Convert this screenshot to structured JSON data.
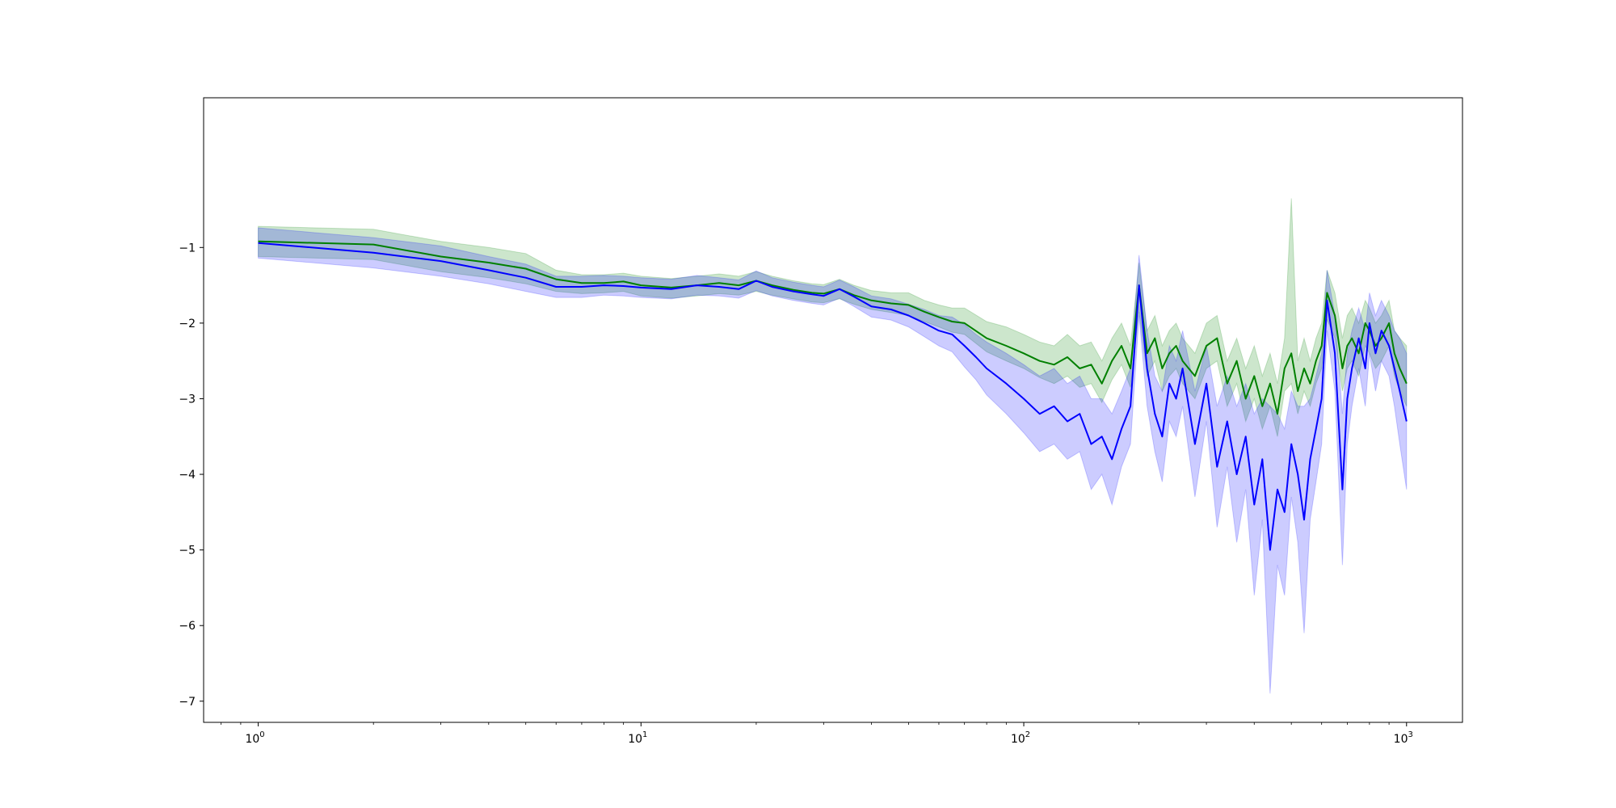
{
  "chart_data": {
    "type": "line",
    "title": "",
    "xlabel": "",
    "ylabel": "",
    "xscale": "log",
    "xlim": [
      0.72,
      1400
    ],
    "ylim": [
      -7.28,
      0.98
    ],
    "grid": false,
    "legend": "none",
    "x_ticks": [
      {
        "value": 1,
        "base": "10",
        "exp": "0"
      },
      {
        "value": 10,
        "base": "10",
        "exp": "1"
      },
      {
        "value": 100,
        "base": "10",
        "exp": "2"
      },
      {
        "value": 1000,
        "base": "10",
        "exp": "3"
      }
    ],
    "y_ticks": [
      {
        "value": -1,
        "label": "−1"
      },
      {
        "value": -2,
        "label": "−2"
      },
      {
        "value": -3,
        "label": "−3"
      },
      {
        "value": -4,
        "label": "−4"
      },
      {
        "value": -5,
        "label": "−5"
      },
      {
        "value": -6,
        "label": "−6"
      },
      {
        "value": -7,
        "label": "−7"
      }
    ],
    "series": [
      {
        "color": "#008000",
        "band_color": "#008000",
        "band_opacity": 0.2,
        "x": [
          1,
          2,
          3,
          4,
          5,
          6,
          7,
          8,
          9,
          10,
          12,
          14,
          16,
          18,
          20,
          22,
          25,
          28,
          30,
          33,
          36,
          40,
          45,
          50,
          55,
          60,
          65,
          70,
          80,
          90,
          100,
          110,
          120,
          130,
          140,
          150,
          160,
          170,
          180,
          190,
          200,
          210,
          220,
          230,
          240,
          250,
          260,
          280,
          300,
          320,
          340,
          360,
          380,
          400,
          420,
          440,
          460,
          480,
          500,
          520,
          540,
          560,
          580,
          600,
          620,
          650,
          680,
          700,
          720,
          750,
          780,
          800,
          830,
          860,
          900,
          930,
          960,
          1000
        ],
        "y": [
          -0.92,
          -0.96,
          -1.12,
          -1.2,
          -1.28,
          -1.42,
          -1.47,
          -1.47,
          -1.45,
          -1.5,
          -1.53,
          -1.5,
          -1.47,
          -1.5,
          -1.44,
          -1.5,
          -1.56,
          -1.6,
          -1.61,
          -1.55,
          -1.63,
          -1.7,
          -1.74,
          -1.76,
          -1.85,
          -1.92,
          -1.98,
          -2.0,
          -2.2,
          -2.3,
          -2.4,
          -2.5,
          -2.55,
          -2.45,
          -2.6,
          -2.55,
          -2.8,
          -2.5,
          -2.3,
          -2.6,
          -1.5,
          -2.4,
          -2.2,
          -2.6,
          -2.4,
          -2.3,
          -2.5,
          -2.7,
          -2.3,
          -2.2,
          -2.8,
          -2.5,
          -3.0,
          -2.7,
          -3.1,
          -2.8,
          -3.2,
          -2.6,
          -2.4,
          -2.9,
          -2.6,
          -2.8,
          -2.5,
          -2.3,
          -1.6,
          -1.9,
          -2.6,
          -2.3,
          -2.2,
          -2.4,
          -2.0,
          -2.1,
          -2.3,
          -2.2,
          -2.0,
          -2.4,
          -2.6,
          -2.8
        ],
        "y_lower": [
          -1.12,
          -1.16,
          -1.32,
          -1.4,
          -1.48,
          -1.58,
          -1.61,
          -1.6,
          -1.58,
          -1.64,
          -1.67,
          -1.64,
          -1.61,
          -1.63,
          -1.58,
          -1.63,
          -1.68,
          -1.72,
          -1.73,
          -1.68,
          -1.75,
          -1.82,
          -1.86,
          -1.9,
          -1.98,
          -2.05,
          -2.12,
          -2.15,
          -2.38,
          -2.5,
          -2.6,
          -2.72,
          -2.8,
          -2.7,
          -2.85,
          -2.8,
          -3.05,
          -2.75,
          -2.55,
          -2.85,
          -1.85,
          -2.7,
          -2.5,
          -2.9,
          -2.7,
          -2.6,
          -2.8,
          -3.0,
          -2.6,
          -2.5,
          -3.1,
          -2.8,
          -3.3,
          -3.0,
          -3.4,
          -3.1,
          -3.5,
          -2.9,
          -2.8,
          -3.2,
          -2.9,
          -3.1,
          -2.8,
          -2.6,
          -1.95,
          -2.2,
          -2.9,
          -2.6,
          -2.5,
          -2.7,
          -2.3,
          -2.4,
          -2.6,
          -2.5,
          -2.3,
          -2.7,
          -2.9,
          -3.1
        ],
        "y_upper": [
          -0.72,
          -0.76,
          -0.92,
          -1.0,
          -1.08,
          -1.3,
          -1.36,
          -1.36,
          -1.34,
          -1.38,
          -1.41,
          -1.38,
          -1.35,
          -1.38,
          -1.32,
          -1.38,
          -1.44,
          -1.48,
          -1.49,
          -1.42,
          -1.5,
          -1.57,
          -1.6,
          -1.6,
          -1.7,
          -1.76,
          -1.8,
          -1.8,
          -1.98,
          -2.05,
          -2.15,
          -2.25,
          -2.3,
          -2.15,
          -2.3,
          -2.25,
          -2.5,
          -2.2,
          -2.0,
          -2.3,
          -1.2,
          -2.1,
          -1.9,
          -2.3,
          -2.1,
          -2.0,
          -2.2,
          -2.4,
          -2.0,
          -1.9,
          -2.5,
          -2.2,
          -2.6,
          -2.3,
          -2.7,
          -2.4,
          -2.8,
          -2.2,
          -0.35,
          -2.5,
          -2.2,
          -2.5,
          -2.2,
          -2.0,
          -1.3,
          -1.6,
          -2.2,
          -1.9,
          -1.8,
          -2.0,
          -1.7,
          -1.8,
          -2.0,
          -1.9,
          -1.7,
          -2.1,
          -2.2,
          -2.3
        ]
      },
      {
        "color": "#0000ff",
        "band_color": "#0000ff",
        "band_opacity": 0.2,
        "x": [
          1,
          2,
          3,
          4,
          5,
          6,
          7,
          8,
          9,
          10,
          12,
          14,
          16,
          18,
          20,
          22,
          25,
          28,
          30,
          33,
          36,
          40,
          45,
          50,
          55,
          60,
          65,
          70,
          75,
          80,
          90,
          100,
          110,
          120,
          130,
          140,
          150,
          160,
          170,
          180,
          190,
          200,
          210,
          220,
          230,
          240,
          250,
          260,
          280,
          300,
          320,
          340,
          360,
          380,
          400,
          420,
          440,
          460,
          480,
          500,
          520,
          540,
          560,
          580,
          600,
          620,
          650,
          680,
          700,
          720,
          750,
          780,
          800,
          830,
          860,
          900,
          930,
          960,
          1000
        ],
        "y": [
          -0.94,
          -1.07,
          -1.18,
          -1.3,
          -1.4,
          -1.52,
          -1.52,
          -1.5,
          -1.51,
          -1.53,
          -1.55,
          -1.5,
          -1.52,
          -1.55,
          -1.44,
          -1.52,
          -1.58,
          -1.62,
          -1.64,
          -1.55,
          -1.65,
          -1.78,
          -1.82,
          -1.9,
          -2.0,
          -2.1,
          -2.15,
          -2.3,
          -2.45,
          -2.6,
          -2.8,
          -3.0,
          -3.2,
          -3.1,
          -3.3,
          -3.2,
          -3.6,
          -3.5,
          -3.8,
          -3.4,
          -3.1,
          -1.5,
          -2.6,
          -3.2,
          -3.5,
          -2.8,
          -3.0,
          -2.6,
          -3.6,
          -2.8,
          -3.9,
          -3.3,
          -4.0,
          -3.5,
          -4.4,
          -3.8,
          -5.0,
          -4.2,
          -4.5,
          -3.6,
          -4.0,
          -4.6,
          -3.8,
          -3.4,
          -3.0,
          -1.7,
          -2.4,
          -4.2,
          -3.0,
          -2.6,
          -2.2,
          -2.6,
          -2.0,
          -2.4,
          -2.1,
          -2.3,
          -2.6,
          -2.9,
          -3.3
        ],
        "y_lower": [
          -1.14,
          -1.27,
          -1.38,
          -1.48,
          -1.58,
          -1.66,
          -1.66,
          -1.63,
          -1.64,
          -1.66,
          -1.68,
          -1.63,
          -1.64,
          -1.67,
          -1.57,
          -1.64,
          -1.7,
          -1.74,
          -1.76,
          -1.67,
          -1.78,
          -1.92,
          -1.96,
          -2.05,
          -2.18,
          -2.3,
          -2.38,
          -2.58,
          -2.75,
          -2.95,
          -3.2,
          -3.45,
          -3.7,
          -3.6,
          -3.8,
          -3.7,
          -4.2,
          -4.0,
          -4.4,
          -3.9,
          -3.6,
          -1.9,
          -3.1,
          -3.7,
          -4.1,
          -3.3,
          -3.5,
          -3.1,
          -4.3,
          -3.3,
          -4.7,
          -3.9,
          -4.9,
          -4.2,
          -5.6,
          -4.6,
          -6.9,
          -5.2,
          -5.6,
          -4.3,
          -4.9,
          -6.1,
          -4.6,
          -4.1,
          -3.6,
          -2.1,
          -2.9,
          -5.2,
          -3.6,
          -3.1,
          -2.6,
          -3.1,
          -2.4,
          -2.9,
          -2.5,
          -2.7,
          -3.1,
          -3.6,
          -4.2
        ],
        "y_upper": [
          -0.74,
          -0.87,
          -0.98,
          -1.12,
          -1.22,
          -1.38,
          -1.38,
          -1.37,
          -1.38,
          -1.4,
          -1.42,
          -1.37,
          -1.4,
          -1.43,
          -1.31,
          -1.4,
          -1.46,
          -1.5,
          -1.52,
          -1.43,
          -1.52,
          -1.64,
          -1.68,
          -1.75,
          -1.82,
          -1.9,
          -1.92,
          -2.02,
          -2.15,
          -2.25,
          -2.4,
          -2.55,
          -2.7,
          -2.6,
          -2.8,
          -2.7,
          -3.0,
          -3.0,
          -3.2,
          -2.9,
          -2.6,
          -1.1,
          -2.1,
          -2.7,
          -2.9,
          -2.3,
          -2.5,
          -2.1,
          -2.9,
          -2.3,
          -3.1,
          -2.7,
          -3.1,
          -2.8,
          -3.2,
          -3.0,
          -3.1,
          -3.2,
          -3.4,
          -2.9,
          -3.1,
          -3.1,
          -3.0,
          -2.7,
          -2.4,
          -1.3,
          -1.9,
          -3.2,
          -2.4,
          -2.1,
          -1.8,
          -2.1,
          -1.6,
          -1.9,
          -1.7,
          -1.9,
          -2.1,
          -2.2,
          -2.4
        ]
      }
    ]
  }
}
